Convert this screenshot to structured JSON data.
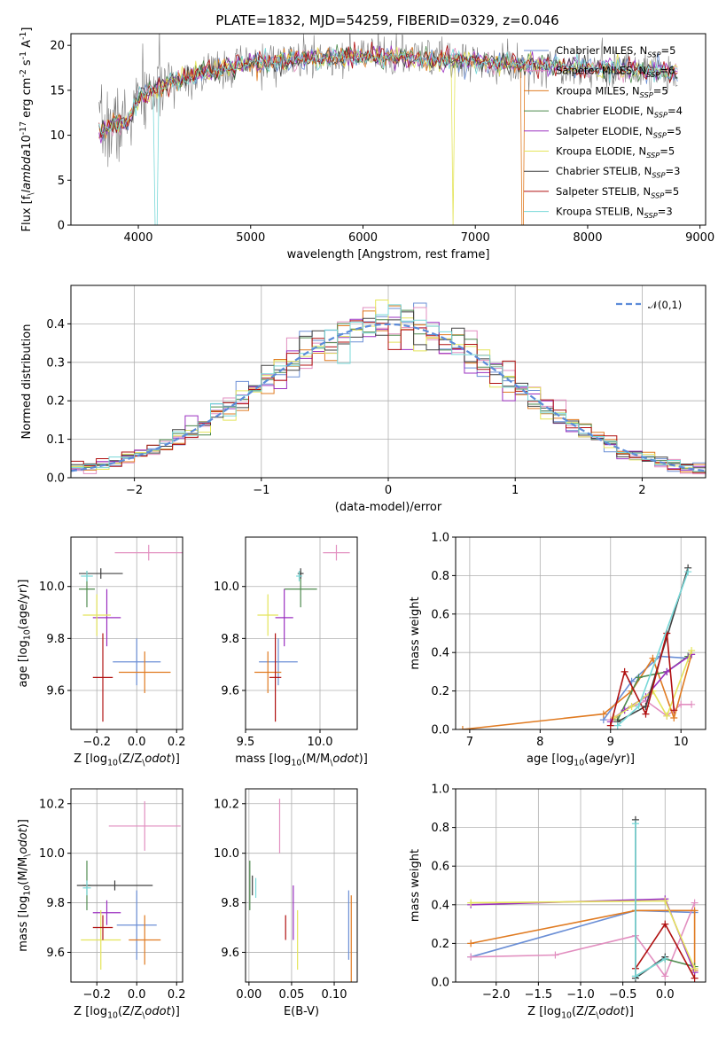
{
  "figure": {
    "title": "PLATE=1832, MJD=54259, FIBERID=0329, z=0.046"
  },
  "colors": {
    "Chabrier MILES": "#6b8fd6",
    "Salpeter MILES": "#e28fc0",
    "Kroupa MILES": "#e07b22",
    "Chabrier ELODIE": "#4e8a4e",
    "Salpeter ELODIE": "#9b30c0",
    "Kroupa ELODIE": "#e4e45a",
    "Chabrier STELIB": "#404040",
    "Salpeter STELIB": "#b01010",
    "Kroupa STELIB": "#78d8d8"
  },
  "chart_data": [
    {
      "id": "spectrum",
      "type": "line",
      "xlabel": "wavelength [Angstrom, rest frame]",
      "ylabel": "Flux [f$_\\lambda$10$^{-17}$ erg cm$^{-2}$ s$^{-1}$ A$^{-1}$]",
      "xlim": [
        3400,
        9050
      ],
      "ylim": [
        0,
        21.3
      ],
      "xticks": [
        4000,
        5000,
        6000,
        7000,
        8000,
        9000
      ],
      "yticks": [
        0,
        5,
        10,
        15,
        20
      ],
      "grid": false,
      "legend": "upper right",
      "data_range": [
        3650,
        8800
      ],
      "continuum": [
        [
          3650,
          10.5
        ],
        [
          3900,
          11.5
        ],
        [
          4000,
          14
        ],
        [
          4200,
          15.5
        ],
        [
          4500,
          16.8
        ],
        [
          5000,
          18
        ],
        [
          5500,
          18.5
        ],
        [
          6000,
          18.8
        ],
        [
          6500,
          18.5
        ],
        [
          7000,
          18.2
        ],
        [
          7500,
          17.8
        ],
        [
          8000,
          17.5
        ],
        [
          8500,
          17.2
        ],
        [
          8800,
          17
        ]
      ],
      "series": [
        {
          "name": "Chabrier MILES, N$_{SSP}$=5",
          "model": "Chabrier MILES"
        },
        {
          "name": "Salpeter MILES, N$_{SSP}$=6",
          "model": "Salpeter MILES"
        },
        {
          "name": "Kroupa MILES, N$_{SSP}$=5",
          "model": "Kroupa MILES"
        },
        {
          "name": "Chabrier ELODIE, N$_{SSP}$=4",
          "model": "Chabrier ELODIE"
        },
        {
          "name": "Salpeter ELODIE, N$_{SSP}$=5",
          "model": "Salpeter ELODIE"
        },
        {
          "name": "Kroupa ELODIE, N$_{SSP}$=5",
          "model": "Kroupa ELODIE"
        },
        {
          "name": "Chabrier STELIB, N$_{SSP}$=3",
          "model": "Chabrier STELIB"
        },
        {
          "name": "Salpeter STELIB, N$_{SSP}$=5",
          "model": "Salpeter STELIB"
        },
        {
          "name": "Kroupa STELIB, N$_{SSP}$=3",
          "model": "Kroupa STELIB"
        }
      ]
    },
    {
      "id": "residuals",
      "type": "line",
      "xlabel": "(data-model)/error",
      "ylabel": "Normed distribution",
      "xlim": [
        -2.5,
        2.5
      ],
      "ylim": [
        0,
        0.5
      ],
      "xticks": [
        -2,
        -1,
        0,
        1,
        2
      ],
      "yticks": [
        0.0,
        0.1,
        0.2,
        0.3,
        0.4
      ],
      "grid": true,
      "legend": "upper right",
      "legend_label": "$\\mathcal{N}(0,1)$",
      "bin_width": 0.1,
      "series_order": [
        "Chabrier MILES",
        "Salpeter MILES",
        "Kroupa MILES",
        "Chabrier ELODIE",
        "Salpeter ELODIE",
        "Kroupa ELODIE",
        "Chabrier STELIB",
        "Salpeter STELIB",
        "Kroupa STELIB"
      ]
    },
    {
      "id": "age_vs_Z",
      "type": "scatter",
      "xlabel": "Z [log$_{10}$(Z/Z$_\\odot$)]",
      "ylabel": "age  [log$_{10}$(age/yr)]",
      "xlim": [
        -0.33,
        0.23
      ],
      "ylim": [
        9.45,
        10.19
      ],
      "xticks": [
        -0.2,
        0.0,
        0.2
      ],
      "yticks": [
        9.6,
        9.8,
        10.0
      ],
      "grid": true,
      "points": [
        {
          "model": "Chabrier MILES",
          "x": 0.0,
          "y": 9.71,
          "xerr": 0.12,
          "yerr": 0.09
        },
        {
          "model": "Salpeter MILES",
          "x": 0.06,
          "y": 10.13,
          "xerr": 0.17,
          "yerr": 0.03
        },
        {
          "model": "Kroupa MILES",
          "x": 0.04,
          "y": 9.67,
          "xerr": 0.13,
          "yerr": 0.08
        },
        {
          "model": "Chabrier ELODIE",
          "x": -0.25,
          "y": 9.99,
          "xerr": 0.04,
          "yerr": 0.07
        },
        {
          "model": "Salpeter ELODIE",
          "x": -0.15,
          "y": 9.88,
          "xerr": 0.07,
          "yerr": 0.11
        },
        {
          "model": "Kroupa ELODIE",
          "x": -0.2,
          "y": 9.89,
          "xerr": 0.07,
          "yerr": 0.08
        },
        {
          "model": "Chabrier STELIB",
          "x": -0.18,
          "y": 10.05,
          "xerr": 0.11,
          "yerr": 0.02
        },
        {
          "model": "Salpeter STELIB",
          "x": -0.17,
          "y": 9.65,
          "xerr": 0.05,
          "yerr": 0.17
        },
        {
          "model": "Kroupa STELIB",
          "x": -0.25,
          "y": 10.04,
          "xerr": 0.03,
          "yerr": 0.02
        }
      ]
    },
    {
      "id": "age_vs_mass",
      "type": "scatter",
      "xlabel": "mass [log$_{10}$(M/M$_\\odot$)]",
      "ylabel": "",
      "xlim": [
        9.5,
        10.25
      ],
      "ylim": [
        9.45,
        10.19
      ],
      "xticks": [
        9.5,
        10.0
      ],
      "yticks": [
        9.6,
        9.8,
        10.0
      ],
      "grid": true,
      "points": [
        {
          "model": "Chabrier MILES",
          "x": 9.72,
          "y": 9.71,
          "xerr": 0.13,
          "yerr": 0.09
        },
        {
          "model": "Salpeter MILES",
          "x": 10.11,
          "y": 10.13,
          "xerr": 0.09,
          "yerr": 0.03
        },
        {
          "model": "Kroupa MILES",
          "x": 9.65,
          "y": 9.67,
          "xerr": 0.09,
          "yerr": 0.08
        },
        {
          "model": "Chabrier ELODIE",
          "x": 9.87,
          "y": 9.99,
          "xerr": 0.11,
          "yerr": 0.07
        },
        {
          "model": "Salpeter ELODIE",
          "x": 9.76,
          "y": 9.88,
          "xerr": 0.06,
          "yerr": 0.11
        },
        {
          "model": "Kroupa ELODIE",
          "x": 9.65,
          "y": 9.89,
          "xerr": 0.07,
          "yerr": 0.08
        },
        {
          "model": "Chabrier STELIB",
          "x": 9.87,
          "y": 10.05,
          "xerr": 0.02,
          "yerr": 0.02
        },
        {
          "model": "Salpeter STELIB",
          "x": 9.7,
          "y": 9.65,
          "xerr": 0.04,
          "yerr": 0.17
        },
        {
          "model": "Kroupa STELIB",
          "x": 9.86,
          "y": 10.04,
          "xerr": 0.02,
          "yerr": 0.02
        }
      ]
    },
    {
      "id": "mass_weight_vs_age",
      "type": "line",
      "xlabel": "age  [log$_{10}$(age/yr)]",
      "ylabel": "mass weight",
      "xlim": [
        6.8,
        10.35
      ],
      "ylim": [
        0,
        1.0
      ],
      "xticks": [
        7,
        8,
        9,
        10
      ],
      "yticks": [
        0.0,
        0.2,
        0.4,
        0.6,
        0.8,
        1.0
      ],
      "grid": true,
      "series": [
        {
          "model": "Chabrier MILES",
          "x": [
            8.9,
            9.3,
            9.7,
            10.1
          ],
          "y": [
            0.05,
            0.25,
            0.38,
            0.37
          ]
        },
        {
          "model": "Salpeter MILES",
          "x": [
            9.0,
            9.2,
            9.5,
            9.8,
            10.0,
            10.15
          ],
          "y": [
            0.05,
            0.1,
            0.15,
            0.07,
            0.13,
            0.13
          ]
        },
        {
          "model": "Kroupa MILES",
          "x": [
            6.9,
            8.9,
            9.3,
            9.6,
            9.9,
            10.15
          ],
          "y": [
            0.0,
            0.08,
            0.2,
            0.37,
            0.06,
            0.39
          ]
        },
        {
          "model": "Chabrier ELODIE",
          "x": [
            9.1,
            9.4,
            9.8,
            10.1
          ],
          "y": [
            0.05,
            0.27,
            0.3,
            0.38
          ]
        },
        {
          "model": "Salpeter ELODIE",
          "x": [
            9.0,
            9.2,
            9.5,
            9.8,
            10.15
          ],
          "y": [
            0.04,
            0.1,
            0.17,
            0.3,
            0.39
          ]
        },
        {
          "model": "Kroupa ELODIE",
          "x": [
            9.05,
            9.3,
            9.6,
            9.8,
            10.15
          ],
          "y": [
            0.06,
            0.12,
            0.2,
            0.07,
            0.41
          ]
        },
        {
          "model": "Chabrier STELIB",
          "x": [
            9.1,
            9.5,
            10.1
          ],
          "y": [
            0.04,
            0.12,
            0.84
          ]
        },
        {
          "model": "Salpeter STELIB",
          "x": [
            9.0,
            9.2,
            9.5,
            9.8,
            9.9
          ],
          "y": [
            0.02,
            0.3,
            0.08,
            0.5,
            0.1
          ]
        },
        {
          "model": "Kroupa STELIB",
          "x": [
            9.1,
            9.4,
            10.1
          ],
          "y": [
            0.02,
            0.12,
            0.82
          ]
        }
      ]
    },
    {
      "id": "mass_vs_Z",
      "type": "scatter",
      "xlabel": "Z [log$_{10}$(Z/Z$_\\odot$)]",
      "ylabel": "mass [log$_{10}$(M/M$_\\odot$)]",
      "xlim": [
        -0.33,
        0.23
      ],
      "ylim": [
        9.48,
        10.26
      ],
      "xticks": [
        -0.2,
        0.0,
        0.2
      ],
      "yticks": [
        9.6,
        9.8,
        10.0,
        10.2
      ],
      "grid": true,
      "points": [
        {
          "model": "Chabrier MILES",
          "x": 0.0,
          "y": 9.71,
          "xerr": 0.1,
          "yerr": 0.14
        },
        {
          "model": "Salpeter MILES",
          "x": 0.04,
          "y": 10.11,
          "xerr": 0.18,
          "yerr": 0.1
        },
        {
          "model": "Kroupa MILES",
          "x": 0.04,
          "y": 9.65,
          "xerr": 0.08,
          "yerr": 0.1
        },
        {
          "model": "Chabrier ELODIE",
          "x": -0.25,
          "y": 9.87,
          "xerr": 0.02,
          "yerr": 0.1
        },
        {
          "model": "Salpeter ELODIE",
          "x": -0.15,
          "y": 9.76,
          "xerr": 0.07,
          "yerr": 0.05
        },
        {
          "model": "Kroupa ELODIE",
          "x": -0.18,
          "y": 9.65,
          "xerr": 0.1,
          "yerr": 0.12
        },
        {
          "model": "Chabrier STELIB",
          "x": -0.11,
          "y": 9.87,
          "xerr": 0.19,
          "yerr": 0.02
        },
        {
          "model": "Salpeter STELIB",
          "x": -0.17,
          "y": 9.7,
          "xerr": 0.05,
          "yerr": 0.05
        },
        {
          "model": "Kroupa STELIB",
          "x": -0.25,
          "y": 9.86,
          "xerr": 0.02,
          "yerr": 0.03
        }
      ]
    },
    {
      "id": "mass_vs_ebv",
      "type": "scatter",
      "xlabel": "E(B-V)",
      "ylabel": "",
      "xlim": [
        -0.004,
        0.127
      ],
      "ylim": [
        9.48,
        10.26
      ],
      "xticks": [
        0.0,
        0.05,
        0.1
      ],
      "yticks": [
        9.6,
        9.8,
        10.0,
        10.2
      ],
      "grid": true,
      "points": [
        {
          "model": "Chabrier MILES",
          "x": 0.117,
          "y": 9.71,
          "xerr": 0,
          "yerr": 0.14
        },
        {
          "model": "Salpeter MILES",
          "x": 0.036,
          "y": 10.11,
          "xerr": 0,
          "yerr": 0.11
        },
        {
          "model": "Kroupa MILES",
          "x": 0.12,
          "y": 9.65,
          "xerr": 0,
          "yerr": 0.18
        },
        {
          "model": "Chabrier ELODIE",
          "x": 0.001,
          "y": 9.87,
          "xerr": 0,
          "yerr": 0.1
        },
        {
          "model": "Salpeter ELODIE",
          "x": 0.052,
          "y": 9.76,
          "xerr": 0,
          "yerr": 0.11
        },
        {
          "model": "Kroupa ELODIE",
          "x": 0.057,
          "y": 9.65,
          "xerr": 0,
          "yerr": 0.12
        },
        {
          "model": "Chabrier STELIB",
          "x": 0.004,
          "y": 9.87,
          "xerr": 0,
          "yerr": 0.04
        },
        {
          "model": "Salpeter STELIB",
          "x": 0.043,
          "y": 9.7,
          "xerr": 0,
          "yerr": 0.05
        },
        {
          "model": "Kroupa STELIB",
          "x": 0.008,
          "y": 9.86,
          "xerr": 0,
          "yerr": 0.04
        }
      ]
    },
    {
      "id": "mass_weight_vs_Z",
      "type": "line",
      "xlabel": "Z [log$_{10}$(Z/Z$_\\odot$)]",
      "ylabel": "mass weight",
      "xlim": [
        -2.48,
        0.48
      ],
      "ylim": [
        0,
        1.0
      ],
      "xticks": [
        -2.0,
        -1.5,
        -1.0,
        -0.5,
        0.0
      ],
      "yticks": [
        0.0,
        0.2,
        0.4,
        0.6,
        0.8,
        1.0
      ],
      "grid": true,
      "series": [
        {
          "model": "Chabrier MILES",
          "x": [
            -2.3,
            -0.35,
            0.35
          ],
          "y": [
            0.13,
            0.37,
            0.36
          ]
        },
        {
          "model": "Salpeter MILES",
          "x": [
            -2.3,
            -1.3,
            -0.35,
            0.0,
            0.35
          ],
          "y": [
            0.13,
            0.14,
            0.24,
            0.03,
            0.41
          ]
        },
        {
          "model": "Kroupa MILES",
          "x": [
            -2.3,
            -0.35,
            0.35,
            0.35
          ],
          "y": [
            0.2,
            0.37,
            0.37,
            0.06
          ]
        },
        {
          "model": "Chabrier ELODIE",
          "x": [
            -0.35,
            0.0,
            0.35
          ],
          "y": [
            0.03,
            0.12,
            0.08
          ]
        },
        {
          "model": "Salpeter ELODIE",
          "x": [
            -2.3,
            0.0,
            0.35
          ],
          "y": [
            0.4,
            0.43,
            0.05
          ]
        },
        {
          "model": "Kroupa ELODIE",
          "x": [
            -2.3,
            0.0,
            0.35
          ],
          "y": [
            0.41,
            0.42,
            0.07
          ]
        },
        {
          "model": "Chabrier STELIB",
          "x": [
            -0.35,
            -0.35,
            0.0
          ],
          "y": [
            0.84,
            0.02,
            0.13
          ]
        },
        {
          "model": "Salpeter STELIB",
          "x": [
            -0.35,
            0.0,
            0.35
          ],
          "y": [
            0.07,
            0.3,
            0.02
          ]
        },
        {
          "model": "Kroupa STELIB",
          "x": [
            -0.35,
            -0.35,
            0.0
          ],
          "y": [
            0.82,
            0.03,
            0.12
          ]
        }
      ]
    }
  ]
}
